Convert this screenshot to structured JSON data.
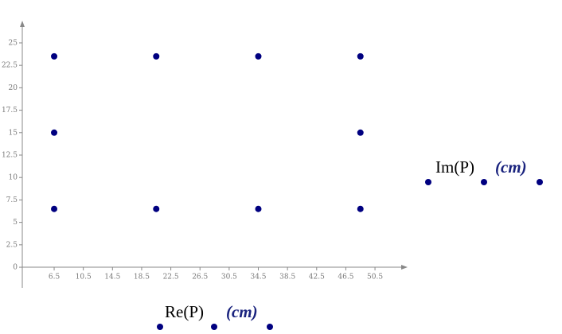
{
  "chart_data": {
    "type": "scatter",
    "x_label": "Re(P)",
    "x_unit": "(cm)",
    "y_label": "Im(P)",
    "y_unit": "(cm)",
    "x": [
      6.5,
      20.5,
      34.5,
      48.5,
      6.5,
      48.5,
      6.5,
      20.5,
      34.5,
      48.5
    ],
    "series": [
      {
        "color": "#000080",
        "values": [
          23.5,
          23.5,
          23.5,
          23.5,
          15,
          15,
          6.5,
          6.5,
          6.5,
          6.5
        ]
      }
    ],
    "xlim": [
      2.13,
      54.75
    ],
    "ylim": [
      -2.3,
      27.3
    ],
    "xticks": [
      6.5,
      10.5,
      14.5,
      18.5,
      22.5,
      26.5,
      30.5,
      34.5,
      38.5,
      42.5,
      46.5,
      50.5
    ],
    "yticks": [
      0,
      2.5,
      5,
      7.5,
      10,
      12.5,
      15,
      17.5,
      20,
      22.5,
      25
    ]
  }
}
